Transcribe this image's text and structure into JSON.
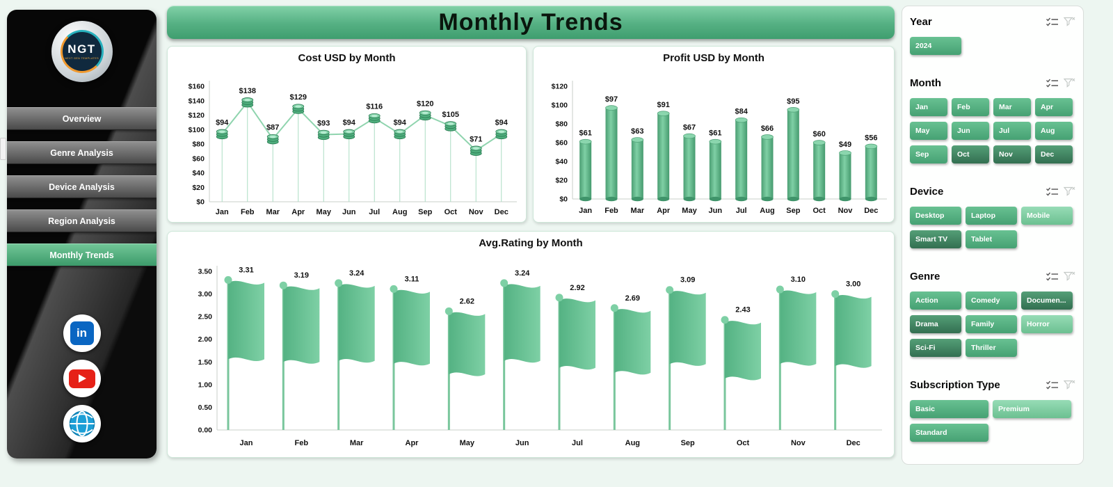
{
  "title": "Monthly Trends",
  "colors": {
    "accent_green": "#4fae7d",
    "banner_top": "#82d2a8",
    "banner_bottom": "#3f9e6f",
    "chip_default": "#46a173",
    "chip_light": "#8ed7ae",
    "chip_dark": "#336f51",
    "sidebar_black": "#0a0a0a",
    "linkedin_blue": "#0a66c2",
    "youtube_red": "#e62117",
    "globe_blue": "#1d9fd6",
    "page_bg": "#edf6f1"
  },
  "sidebar": {
    "logo": {
      "text": "NGT",
      "subtext": "NEXT GEN TEMPLATES"
    },
    "items": [
      {
        "label": "Overview",
        "active": false
      },
      {
        "label": "Genre Analysis",
        "active": false
      },
      {
        "label": "Device Analysis",
        "active": false
      },
      {
        "label": "Region Analysis",
        "active": false
      },
      {
        "label": "Monthly Trends",
        "active": true
      }
    ],
    "social": [
      {
        "name": "linkedin",
        "glyph": "in"
      },
      {
        "name": "youtube"
      },
      {
        "name": "website"
      }
    ]
  },
  "chart_data": [
    {
      "type": "line",
      "subtype": "coin-marker",
      "title": "Cost USD by Month",
      "categories": [
        "Jan",
        "Feb",
        "Mar",
        "Apr",
        "May",
        "Jun",
        "Jul",
        "Aug",
        "Sep",
        "Oct",
        "Nov",
        "Dec"
      ],
      "values": [
        94,
        138,
        87,
        129,
        93,
        94,
        116,
        94,
        120,
        105,
        71,
        94
      ],
      "ylim": [
        0,
        160
      ],
      "ytick_step": 20,
      "tick_format": {
        "prefix": "$",
        "decimals": 0
      },
      "label_format": {
        "prefix": "$",
        "decimals": 0
      },
      "grid": false,
      "legend": "none"
    },
    {
      "type": "bar",
      "subtype": "cylinder",
      "title": "Profit USD by Month",
      "categories": [
        "Jan",
        "Feb",
        "Mar",
        "Apr",
        "May",
        "Jun",
        "Jul",
        "Aug",
        "Sep",
        "Oct",
        "Nov",
        "Dec"
      ],
      "values": [
        61,
        97,
        63,
        91,
        67,
        61,
        84,
        66,
        95,
        60,
        49,
        56
      ],
      "ylim": [
        0,
        120
      ],
      "ytick_step": 20,
      "tick_format": {
        "prefix": "$",
        "decimals": 0
      },
      "label_format": {
        "prefix": "$",
        "decimals": 0
      },
      "grid": false,
      "legend": "none"
    },
    {
      "type": "bar",
      "subtype": "flag",
      "title": "Avg.Rating by Month",
      "categories": [
        "Jan",
        "Feb",
        "Mar",
        "Apr",
        "May",
        "Jun",
        "Jul",
        "Aug",
        "Sep",
        "Oct",
        "Nov",
        "Dec"
      ],
      "values": [
        3.31,
        3.19,
        3.24,
        3.11,
        2.62,
        3.24,
        2.92,
        2.69,
        3.09,
        2.43,
        3.1,
        3.0
      ],
      "ylim": [
        0,
        3.5
      ],
      "ytick_step": 0.5,
      "tick_format": {
        "prefix": "",
        "decimals": 2
      },
      "label_format": {
        "prefix": "",
        "decimals": 2
      },
      "grid": false,
      "legend": "none"
    }
  ],
  "slicers": [
    {
      "name": "Year",
      "key": "year",
      "options": [
        {
          "label": "2024",
          "shade": "default"
        }
      ]
    },
    {
      "name": "Month",
      "key": "month",
      "options": [
        {
          "label": "Jan",
          "shade": "default"
        },
        {
          "label": "Feb",
          "shade": "default"
        },
        {
          "label": "Mar",
          "shade": "default"
        },
        {
          "label": "Apr",
          "shade": "default"
        },
        {
          "label": "May",
          "shade": "default"
        },
        {
          "label": "Jun",
          "shade": "default"
        },
        {
          "label": "Jul",
          "shade": "default"
        },
        {
          "label": "Aug",
          "shade": "default"
        },
        {
          "label": "Sep",
          "shade": "default"
        },
        {
          "label": "Oct",
          "shade": "dark"
        },
        {
          "label": "Nov",
          "shade": "dark"
        },
        {
          "label": "Dec",
          "shade": "dark"
        }
      ]
    },
    {
      "name": "Device",
      "key": "device",
      "options": [
        {
          "label": "Desktop",
          "shade": "default"
        },
        {
          "label": "Laptop",
          "shade": "default"
        },
        {
          "label": "Mobile",
          "shade": "light"
        },
        {
          "label": "Smart TV",
          "shade": "dark"
        },
        {
          "label": "Tablet",
          "shade": "default"
        }
      ]
    },
    {
      "name": "Genre",
      "key": "genre",
      "options": [
        {
          "label": "Action",
          "shade": "default"
        },
        {
          "label": "Comedy",
          "shade": "default"
        },
        {
          "label": "Documen...",
          "shade": "dark"
        },
        {
          "label": "Drama",
          "shade": "dark"
        },
        {
          "label": "Family",
          "shade": "default"
        },
        {
          "label": "Horror",
          "shade": "light"
        },
        {
          "label": "Sci-Fi",
          "shade": "dark"
        },
        {
          "label": "Thriller",
          "shade": "default"
        }
      ]
    },
    {
      "name": "Subscription Type",
      "key": "subscription-type",
      "options": [
        {
          "label": "Basic",
          "shade": "default"
        },
        {
          "label": "Premium",
          "shade": "light"
        },
        {
          "label": "Standard",
          "shade": "default"
        }
      ]
    }
  ],
  "slicer_icons": [
    "select-multiple-icon",
    "clear-filter-icon"
  ]
}
